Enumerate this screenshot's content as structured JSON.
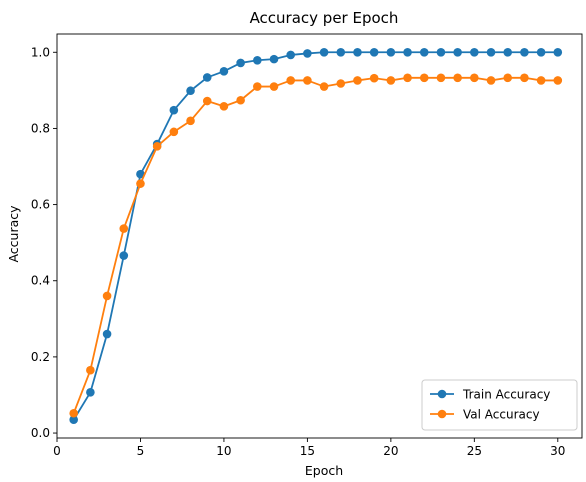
{
  "chart_data": {
    "type": "line",
    "title": "Accuracy per Epoch",
    "xlabel": "Epoch",
    "ylabel": "Accuracy",
    "xlim": [
      0,
      31.45
    ],
    "ylim": [
      -0.013,
      1.048
    ],
    "xticks": [
      0,
      5,
      10,
      15,
      20,
      25,
      30
    ],
    "yticks": [
      0.0,
      0.2,
      0.4,
      0.6,
      0.8,
      1.0
    ],
    "xtick_labels": [
      "0",
      "5",
      "10",
      "15",
      "20",
      "25",
      "30"
    ],
    "ytick_labels": [
      "0.0",
      "0.2",
      "0.4",
      "0.6",
      "0.8",
      "1.0"
    ],
    "grid": false,
    "legend_position": "lower-right",
    "x": [
      1,
      2,
      3,
      4,
      5,
      6,
      7,
      8,
      9,
      10,
      11,
      12,
      13,
      14,
      15,
      16,
      17,
      18,
      19,
      20,
      21,
      22,
      23,
      24,
      25,
      26,
      27,
      28,
      29,
      30
    ],
    "series": [
      {
        "name": "Train Accuracy",
        "color": "#1f77b4",
        "values": [
          0.035,
          0.107,
          0.26,
          0.466,
          0.68,
          0.759,
          0.848,
          0.899,
          0.934,
          0.95,
          0.972,
          0.979,
          0.982,
          0.993,
          0.997,
          1.0,
          1.0,
          1.0,
          1.0,
          1.0,
          1.0,
          1.0,
          1.0,
          1.0,
          1.0,
          1.0,
          1.0,
          1.0,
          1.0,
          1.0
        ]
      },
      {
        "name": "Val Accuracy",
        "color": "#ff7f0e",
        "values": [
          0.052,
          0.165,
          0.36,
          0.537,
          0.655,
          0.753,
          0.791,
          0.82,
          0.872,
          0.858,
          0.874,
          0.91,
          0.91,
          0.926,
          0.926,
          0.91,
          0.918,
          0.926,
          0.932,
          0.926,
          0.933,
          0.933,
          0.933,
          0.933,
          0.933,
          0.926,
          0.933,
          0.933,
          0.926,
          0.926
        ]
      }
    ]
  }
}
